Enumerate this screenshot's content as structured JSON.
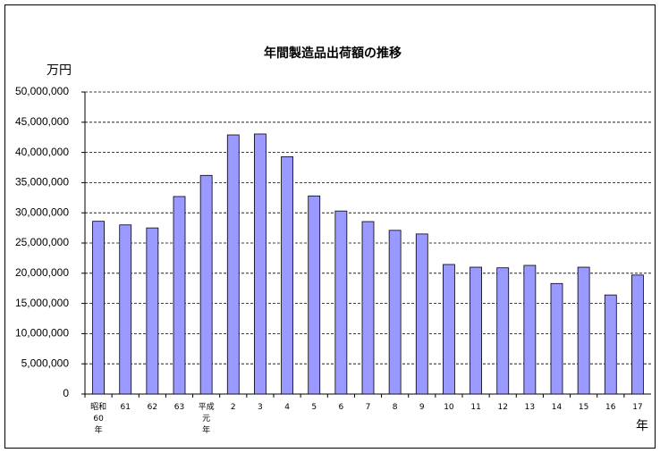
{
  "chart_data": {
    "type": "bar",
    "title": "年間製造品出荷額の推移",
    "y_unit": "万円",
    "x_label": "年",
    "categories": [
      "昭和\n60\n年",
      "61",
      "62",
      "63",
      "平成\n元\n年",
      "2",
      "3",
      "4",
      "5",
      "6",
      "7",
      "8",
      "9",
      "10",
      "11",
      "12",
      "13",
      "14",
      "15",
      "16",
      "17"
    ],
    "values": [
      28600000,
      28000000,
      27500000,
      32700000,
      36200000,
      42900000,
      43050000,
      39300000,
      32800000,
      30300000,
      28550000,
      27100000,
      26500000,
      21450000,
      21000000,
      20900000,
      21300000,
      18300000,
      21000000,
      16400000,
      19700000
    ],
    "color": "#9999ff",
    "ylim": [
      0,
      50000000
    ],
    "yticks": [
      0,
      {
        "value": 5000000,
        "label": "5,000,000"
      },
      {
        "value": 10000000,
        "label": "10,000,000"
      },
      {
        "value": 15000000,
        "label": "15,000,000"
      },
      {
        "value": 20000000,
        "label": "20,000,000"
      },
      {
        "value": 25000000,
        "label": "25,000,000"
      },
      {
        "value": 30000000,
        "label": "30,000,000"
      },
      {
        "value": 35000000,
        "label": "35,000,000"
      },
      {
        "value": 40000000,
        "label": "40,000,000"
      },
      {
        "value": 45000000,
        "label": "45,000,000"
      },
      {
        "value": 50000000,
        "label": "50,000,000"
      }
    ],
    "grid": true
  }
}
